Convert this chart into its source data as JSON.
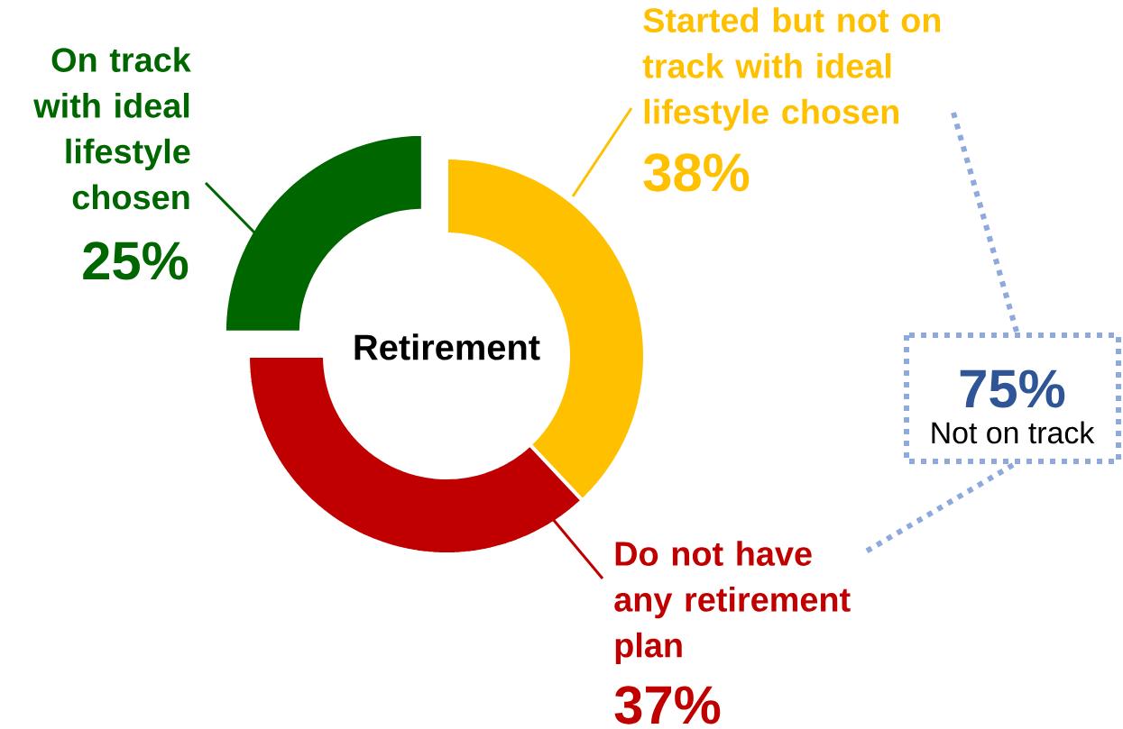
{
  "chart_data": {
    "type": "donut",
    "title": "Retirement",
    "categories": [
      "Started but not on track with ideal lifestyle chosen",
      "Do not have any retirement plan",
      "On track with ideal lifestyle chosen"
    ],
    "values": [
      38,
      37,
      25
    ],
    "colors": [
      "#ffc000",
      "#c00000",
      "#006600"
    ],
    "value_labels": [
      "38%",
      "37%",
      "25%"
    ],
    "annotations": [
      "75%",
      "Not on track"
    ]
  }
}
